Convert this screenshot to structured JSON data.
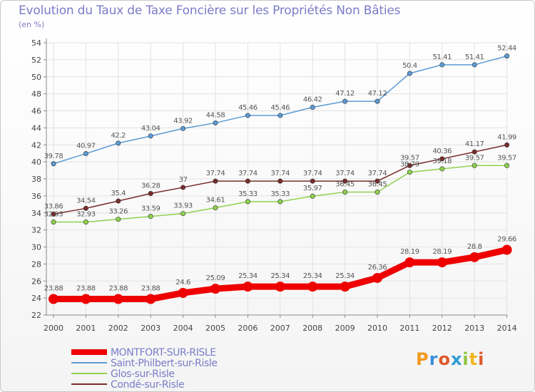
{
  "header": {
    "title": "Evolution du Taux de Taxe Foncière sur les Propriétés Non Bâties",
    "subtitle": "(en %)"
  },
  "logo": {
    "text": "Proxiti"
  },
  "colors": {
    "axis": "#8a8a8a",
    "grid": "#e2e2e2",
    "label": "#444444",
    "legend_text": "#7b7bc8"
  },
  "chart_data": {
    "type": "line",
    "title": "Evolution du Taux de Taxe Foncière sur les Propriétés Non Bâties",
    "ylabel": "(en %)",
    "xlabel": "",
    "x": [
      "2000",
      "2001",
      "2002",
      "2003",
      "2004",
      "2005",
      "2006",
      "2007",
      "2008",
      "2009",
      "2010",
      "2011",
      "2012",
      "2013",
      "2014"
    ],
    "ylim": [
      22,
      54
    ],
    "yticks": [
      22,
      24,
      26,
      28,
      30,
      32,
      34,
      36,
      38,
      40,
      42,
      44,
      46,
      48,
      50,
      52,
      54
    ],
    "grid": true,
    "legend_position": "bottom-left",
    "series": [
      {
        "name": "MONTFORT-SUR-RISLE",
        "color": "#ee0000",
        "highlight": true,
        "values": [
          23.88,
          23.88,
          23.88,
          23.88,
          24.6,
          25.09,
          25.34,
          25.34,
          25.34,
          25.34,
          26.36,
          28.19,
          28.19,
          28.8,
          29.66
        ],
        "labels": [
          "23.88",
          "23.88",
          "23.88",
          "23.88",
          "24.6",
          "25.09",
          "25.34",
          "25.34",
          "25.34",
          "25.34",
          "26.36",
          "28.19",
          "28.19",
          "28.8",
          "29.66"
        ]
      },
      {
        "name": "Saint-Philbert-sur-Risle",
        "color": "#5b9bd5",
        "values": [
          39.78,
          40.97,
          42.2,
          43.04,
          43.92,
          44.58,
          45.46,
          45.46,
          46.42,
          47.12,
          47.12,
          50.4,
          51.41,
          51.41,
          52.44
        ],
        "labels": [
          "39.78",
          "40.97",
          "42.2",
          "43.04",
          "43.92",
          "44.58",
          "45.46",
          "45.46",
          "46.42",
          "47.12",
          "47.12",
          "50.4",
          "51.41",
          "51.41",
          "52.44"
        ]
      },
      {
        "name": "Glos-sur-Risle",
        "color": "#8fd14f",
        "values": [
          32.93,
          32.93,
          33.26,
          33.59,
          33.93,
          34.61,
          35.33,
          35.33,
          35.97,
          36.45,
          36.45,
          38.79,
          39.18,
          39.57,
          39.57
        ],
        "labels": [
          "32.93",
          "32.93",
          "33.26",
          "33.59",
          "33.93",
          "34.61",
          "35.33",
          "35.33",
          "35.97",
          "36.45",
          "36.45",
          "38.79",
          "39.18",
          "39.57",
          "39.57"
        ]
      },
      {
        "name": "Condé-sur-Risle",
        "color": "#7a2c2c",
        "values": [
          33.86,
          34.54,
          35.4,
          36.28,
          37,
          37.74,
          37.74,
          37.74,
          37.74,
          37.74,
          37.74,
          39.57,
          40.36,
          41.17,
          41.99
        ],
        "labels": [
          "33.86",
          "34.54",
          "35.4",
          "36.28",
          "37",
          "37.74",
          "37.74",
          "37.74",
          "37.74",
          "37.74",
          "37.74",
          "39.57",
          "40.36",
          "41.17",
          "41.99"
        ]
      }
    ]
  }
}
